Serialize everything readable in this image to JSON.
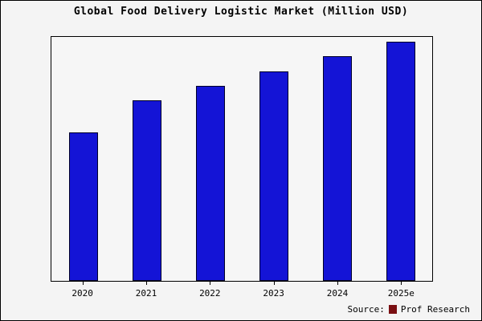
{
  "title": "Global Food Delivery Logistic Market (Million USD)",
  "source": {
    "prefix": "Source:",
    "name": "Prof Research",
    "swatch_color": "#7a0f12"
  },
  "colors": {
    "bar_fill": "#1414d6",
    "bar_edge": "#000028",
    "background": "#f4f4f4",
    "plot_background": "#f6f6f6",
    "border": "#000000"
  },
  "chart_data": {
    "type": "bar",
    "title": "Global Food Delivery Logistic Market (Million USD)",
    "categories": [
      "2020",
      "2021",
      "2022",
      "2023",
      "2024",
      "2025e"
    ],
    "values": [
      61,
      74,
      80,
      86,
      92,
      98
    ],
    "xlabel": "",
    "ylabel": "",
    "ylim": [
      0,
      100
    ],
    "y_axis_labels_visible": false,
    "grid": false,
    "legend_position": "none",
    "bar_color": "#1414d6",
    "bar_edge_color": "#000028"
  }
}
